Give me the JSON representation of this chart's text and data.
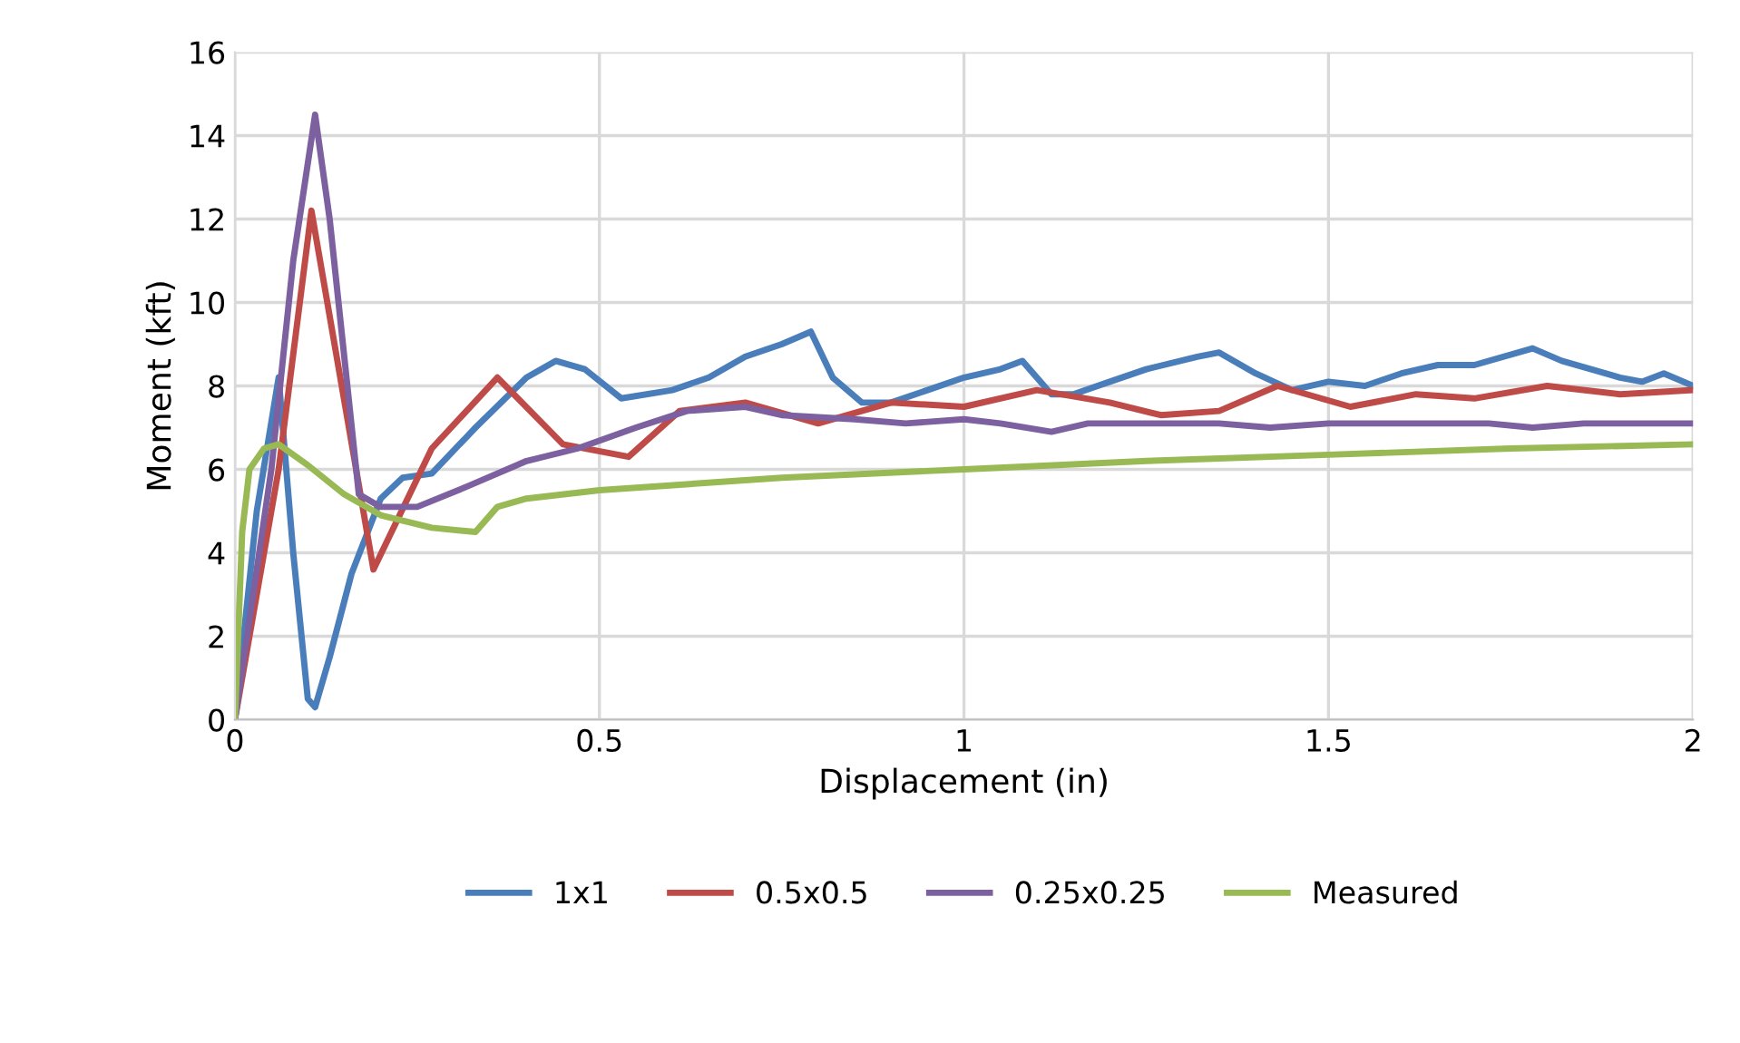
{
  "chart_data": {
    "type": "line",
    "xlabel": "Displacement (in)",
    "ylabel": "Moment (kft)",
    "xlim": [
      0,
      2
    ],
    "xticks": [
      0,
      0.5,
      1,
      1.5,
      2
    ],
    "ylim": [
      0,
      16
    ],
    "yticks": [
      0,
      2,
      4,
      6,
      8,
      10,
      12,
      14,
      16
    ],
    "grid": true,
    "legend": "bottom",
    "marker": "none",
    "line_style": "solid",
    "series": [
      {
        "name": "1x1",
        "color": "#4a7ebb",
        "x": [
          0,
          0.03,
          0.06,
          0.08,
          0.1,
          0.11,
          0.13,
          0.16,
          0.2,
          0.23,
          0.27,
          0.33,
          0.4,
          0.44,
          0.48,
          0.53,
          0.6,
          0.65,
          0.7,
          0.75,
          0.79,
          0.82,
          0.86,
          0.9,
          0.95,
          1.0,
          1.05,
          1.08,
          1.12,
          1.15,
          1.2,
          1.25,
          1.32,
          1.35,
          1.4,
          1.45,
          1.5,
          1.55,
          1.6,
          1.65,
          1.7,
          1.78,
          1.82,
          1.9,
          1.93,
          1.96,
          2.0
        ],
        "values": [
          0,
          5,
          8.2,
          4,
          0.5,
          0.3,
          1.5,
          3.5,
          5.3,
          5.8,
          5.9,
          7.0,
          8.2,
          8.6,
          8.4,
          7.7,
          7.9,
          8.2,
          8.7,
          9.0,
          9.3,
          8.2,
          7.6,
          7.6,
          7.9,
          8.2,
          8.4,
          8.6,
          7.8,
          7.8,
          8.1,
          8.4,
          8.7,
          8.8,
          8.3,
          7.9,
          8.1,
          8.0,
          8.3,
          8.5,
          8.5,
          8.9,
          8.6,
          8.2,
          8.1,
          8.3,
          8.0
        ]
      },
      {
        "name": "0.5x0.5",
        "color": "#be4b48",
        "x": [
          0,
          0.06,
          0.105,
          0.19,
          0.27,
          0.36,
          0.45,
          0.54,
          0.61,
          0.7,
          0.8,
          0.9,
          1.0,
          1.1,
          1.2,
          1.27,
          1.35,
          1.43,
          1.53,
          1.62,
          1.7,
          1.8,
          1.9,
          2.0
        ],
        "values": [
          0,
          6,
          12.2,
          3.6,
          6.5,
          8.2,
          6.6,
          6.3,
          7.4,
          7.6,
          7.1,
          7.6,
          7.5,
          7.9,
          7.6,
          7.3,
          7.4,
          8.0,
          7.5,
          7.8,
          7.7,
          8.0,
          7.8,
          7.9
        ]
      },
      {
        "name": "0.25x0.25",
        "color": "#7d60a0",
        "x": [
          0,
          0.05,
          0.08,
          0.11,
          0.13,
          0.17,
          0.2,
          0.25,
          0.32,
          0.4,
          0.47,
          0.55,
          0.62,
          0.7,
          0.75,
          0.85,
          0.92,
          1.0,
          1.05,
          1.12,
          1.17,
          1.25,
          1.35,
          1.42,
          1.5,
          1.6,
          1.72,
          1.78,
          1.85,
          2.0
        ],
        "values": [
          0,
          6,
          11,
          14.5,
          12,
          5.4,
          5.1,
          5.1,
          5.6,
          6.2,
          6.5,
          7.0,
          7.4,
          7.5,
          7.3,
          7.2,
          7.1,
          7.2,
          7.1,
          6.9,
          7.1,
          7.1,
          7.1,
          7.0,
          7.1,
          7.1,
          7.1,
          7.0,
          7.1,
          7.1
        ]
      },
      {
        "name": "Measured",
        "color": "#98b954",
        "x": [
          0,
          0.01,
          0.02,
          0.04,
          0.06,
          0.1,
          0.15,
          0.2,
          0.27,
          0.33,
          0.36,
          0.4,
          0.5,
          0.75,
          1.0,
          1.25,
          1.5,
          1.75,
          2.0
        ],
        "values": [
          0,
          4.5,
          6.0,
          6.5,
          6.6,
          6.1,
          5.4,
          4.9,
          4.6,
          4.5,
          5.1,
          5.3,
          5.5,
          5.8,
          6.0,
          6.2,
          6.35,
          6.5,
          6.6
        ]
      }
    ]
  }
}
